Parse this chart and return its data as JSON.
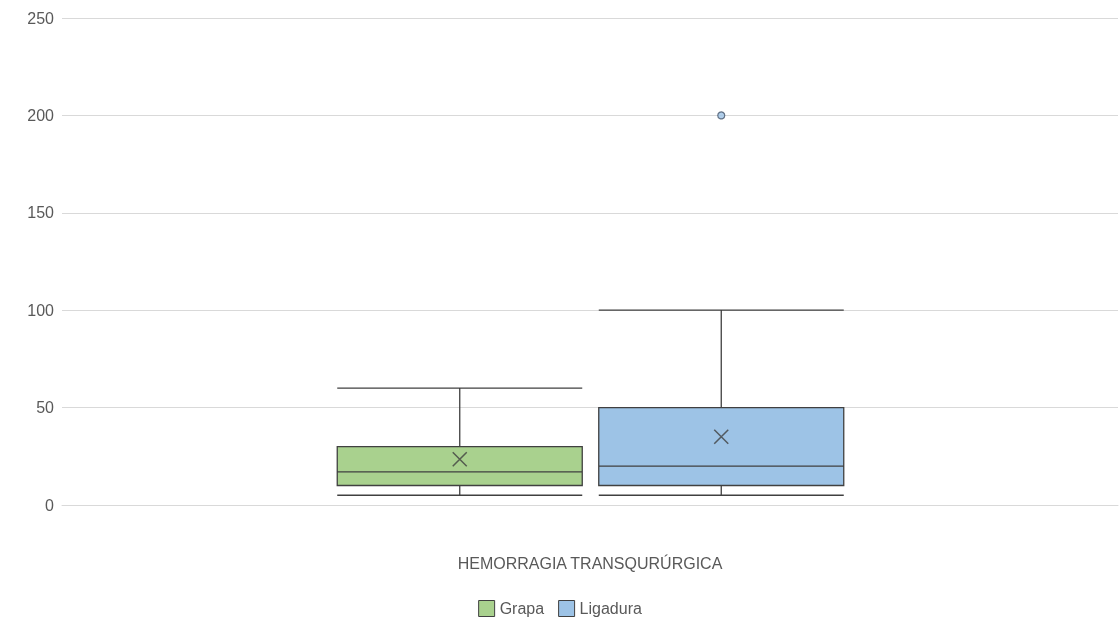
{
  "chart_data": {
    "type": "box",
    "xlabel": "HEMORRAGIA TRANSQURÚRGICA",
    "categories": [
      null
    ],
    "series": [
      {
        "name": "Grapa",
        "color": "#a9d18e",
        "boxes": [
          {
            "low": 5,
            "q1": 10,
            "median": 17,
            "q3": 30,
            "high": 60,
            "mean": 23.5
          }
        ]
      },
      {
        "name": "Ligadura",
        "color": "#9dc3e6",
        "boxes": [
          {
            "low": 5,
            "q1": 10,
            "median": 20,
            "q3": 50,
            "high": 100,
            "mean": 35,
            "outliers": [
              200
            ]
          }
        ]
      }
    ],
    "ylim": [
      0,
      250
    ],
    "yticks": [
      0,
      50,
      100,
      150,
      200,
      250
    ],
    "grid": "y",
    "legend": "bottom",
    "marker": "cross"
  }
}
